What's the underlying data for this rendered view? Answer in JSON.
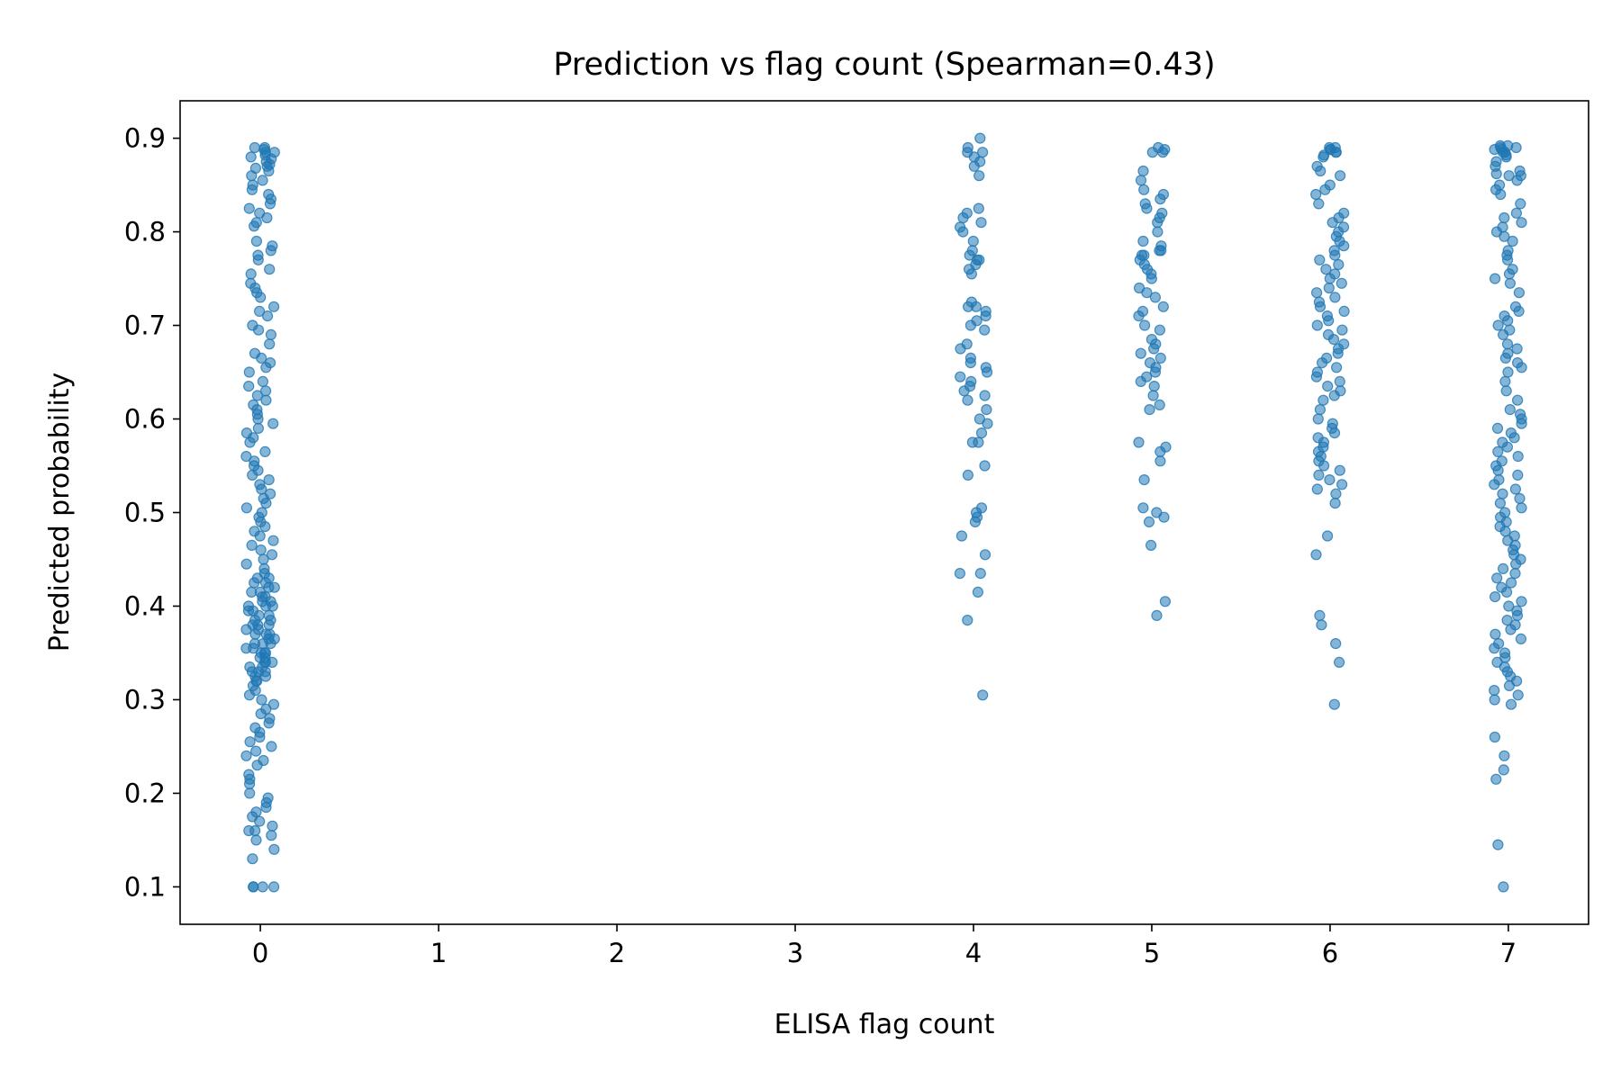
{
  "chart_data": {
    "type": "scatter",
    "title": "Prediction vs flag count (Spearman=0.43)",
    "xlabel": "ELISA flag count",
    "ylabel": "Predicted probability",
    "xlim": [
      -0.45,
      7.45
    ],
    "ylim": [
      0.06,
      0.94
    ],
    "x_ticks": [
      "0",
      "1",
      "2",
      "3",
      "4",
      "5",
      "6",
      "7"
    ],
    "y_ticks": [
      "0.1",
      "0.2",
      "0.3",
      "0.4",
      "0.5",
      "0.6",
      "0.7",
      "0.8",
      "0.9"
    ],
    "grid": false,
    "jitter": 0.08,
    "marker_color": "#1f77b4",
    "marker_alpha": 0.55,
    "series": [
      {
        "x": 0,
        "y": [
          0.89,
          0.89,
          0.888,
          0.885,
          0.885,
          0.882,
          0.88,
          0.878,
          0.875,
          0.872,
          0.87,
          0.868,
          0.865,
          0.86,
          0.855,
          0.85,
          0.845,
          0.84,
          0.835,
          0.83,
          0.825,
          0.82,
          0.815,
          0.81,
          0.806,
          0.79,
          0.785,
          0.78,
          0.775,
          0.77,
          0.76,
          0.755,
          0.745,
          0.74,
          0.735,
          0.73,
          0.72,
          0.715,
          0.71,
          0.7,
          0.695,
          0.69,
          0.68,
          0.67,
          0.665,
          0.66,
          0.655,
          0.65,
          0.64,
          0.635,
          0.63,
          0.625,
          0.62,
          0.615,
          0.61,
          0.605,
          0.6,
          0.595,
          0.59,
          0.585,
          0.58,
          0.575,
          0.565,
          0.56,
          0.555,
          0.55,
          0.545,
          0.54,
          0.535,
          0.53,
          0.525,
          0.52,
          0.515,
          0.51,
          0.505,
          0.5,
          0.495,
          0.49,
          0.485,
          0.48,
          0.475,
          0.47,
          0.465,
          0.46,
          0.455,
          0.45,
          0.445,
          0.44,
          0.435,
          0.43,
          0.43,
          0.425,
          0.425,
          0.42,
          0.42,
          0.415,
          0.415,
          0.41,
          0.41,
          0.405,
          0.405,
          0.4,
          0.4,
          0.4,
          0.395,
          0.395,
          0.39,
          0.39,
          0.385,
          0.385,
          0.38,
          0.38,
          0.38,
          0.375,
          0.375,
          0.37,
          0.37,
          0.37,
          0.365,
          0.365,
          0.36,
          0.36,
          0.36,
          0.355,
          0.355,
          0.35,
          0.35,
          0.35,
          0.345,
          0.345,
          0.34,
          0.34,
          0.34,
          0.335,
          0.335,
          0.33,
          0.33,
          0.33,
          0.325,
          0.325,
          0.32,
          0.32,
          0.315,
          0.31,
          0.305,
          0.3,
          0.295,
          0.29,
          0.285,
          0.28,
          0.275,
          0.27,
          0.265,
          0.26,
          0.255,
          0.25,
          0.245,
          0.24,
          0.235,
          0.23,
          0.22,
          0.215,
          0.21,
          0.2,
          0.195,
          0.19,
          0.185,
          0.18,
          0.175,
          0.17,
          0.165,
          0.16,
          0.16,
          0.155,
          0.15,
          0.14,
          0.13,
          0.1,
          0.1,
          0.1,
          0.1
        ]
      },
      {
        "x": 4,
        "y": [
          0.9,
          0.89,
          0.885,
          0.885,
          0.88,
          0.875,
          0.87,
          0.86,
          0.825,
          0.82,
          0.815,
          0.81,
          0.805,
          0.8,
          0.79,
          0.78,
          0.775,
          0.77,
          0.77,
          0.765,
          0.76,
          0.755,
          0.725,
          0.72,
          0.72,
          0.715,
          0.71,
          0.705,
          0.7,
          0.695,
          0.68,
          0.675,
          0.665,
          0.66,
          0.655,
          0.65,
          0.645,
          0.64,
          0.635,
          0.63,
          0.625,
          0.62,
          0.61,
          0.6,
          0.595,
          0.585,
          0.575,
          0.575,
          0.55,
          0.54,
          0.505,
          0.5,
          0.495,
          0.49,
          0.475,
          0.455,
          0.435,
          0.435,
          0.415,
          0.385,
          0.305
        ]
      },
      {
        "x": 5,
        "y": [
          0.89,
          0.888,
          0.885,
          0.885,
          0.865,
          0.855,
          0.845,
          0.84,
          0.835,
          0.83,
          0.825,
          0.82,
          0.815,
          0.81,
          0.8,
          0.79,
          0.785,
          0.78,
          0.78,
          0.775,
          0.775,
          0.77,
          0.765,
          0.76,
          0.755,
          0.75,
          0.74,
          0.735,
          0.73,
          0.72,
          0.715,
          0.71,
          0.7,
          0.695,
          0.685,
          0.68,
          0.675,
          0.67,
          0.665,
          0.66,
          0.655,
          0.65,
          0.645,
          0.64,
          0.635,
          0.625,
          0.615,
          0.61,
          0.575,
          0.57,
          0.565,
          0.555,
          0.535,
          0.505,
          0.5,
          0.495,
          0.49,
          0.465,
          0.405,
          0.39
        ]
      },
      {
        "x": 6,
        "y": [
          0.89,
          0.89,
          0.888,
          0.888,
          0.885,
          0.885,
          0.882,
          0.88,
          0.87,
          0.865,
          0.86,
          0.85,
          0.845,
          0.84,
          0.83,
          0.82,
          0.815,
          0.81,
          0.805,
          0.8,
          0.795,
          0.79,
          0.785,
          0.78,
          0.775,
          0.77,
          0.765,
          0.76,
          0.755,
          0.75,
          0.745,
          0.74,
          0.735,
          0.73,
          0.725,
          0.72,
          0.715,
          0.71,
          0.705,
          0.7,
          0.695,
          0.69,
          0.685,
          0.68,
          0.675,
          0.67,
          0.665,
          0.66,
          0.655,
          0.65,
          0.645,
          0.64,
          0.635,
          0.63,
          0.625,
          0.62,
          0.61,
          0.6,
          0.595,
          0.59,
          0.585,
          0.58,
          0.575,
          0.57,
          0.565,
          0.56,
          0.555,
          0.55,
          0.545,
          0.54,
          0.535,
          0.53,
          0.525,
          0.52,
          0.51,
          0.475,
          0.455,
          0.39,
          0.38,
          0.36,
          0.34,
          0.295
        ]
      },
      {
        "x": 7,
        "y": [
          0.892,
          0.892,
          0.89,
          0.89,
          0.888,
          0.888,
          0.885,
          0.885,
          0.882,
          0.88,
          0.875,
          0.87,
          0.865,
          0.862,
          0.86,
          0.86,
          0.855,
          0.85,
          0.845,
          0.84,
          0.83,
          0.82,
          0.815,
          0.81,
          0.805,
          0.8,
          0.795,
          0.79,
          0.78,
          0.775,
          0.77,
          0.76,
          0.755,
          0.75,
          0.745,
          0.735,
          0.72,
          0.715,
          0.71,
          0.705,
          0.7,
          0.695,
          0.69,
          0.68,
          0.675,
          0.67,
          0.665,
          0.66,
          0.655,
          0.65,
          0.64,
          0.63,
          0.62,
          0.61,
          0.605,
          0.6,
          0.595,
          0.59,
          0.585,
          0.58,
          0.575,
          0.57,
          0.565,
          0.56,
          0.555,
          0.55,
          0.545,
          0.54,
          0.535,
          0.53,
          0.525,
          0.52,
          0.515,
          0.51,
          0.505,
          0.5,
          0.495,
          0.49,
          0.485,
          0.48,
          0.475,
          0.47,
          0.465,
          0.46,
          0.455,
          0.45,
          0.445,
          0.44,
          0.435,
          0.43,
          0.425,
          0.42,
          0.415,
          0.41,
          0.405,
          0.4,
          0.395,
          0.39,
          0.385,
          0.38,
          0.375,
          0.37,
          0.365,
          0.36,
          0.355,
          0.35,
          0.345,
          0.34,
          0.335,
          0.33,
          0.325,
          0.32,
          0.315,
          0.31,
          0.305,
          0.3,
          0.295,
          0.26,
          0.24,
          0.225,
          0.215,
          0.145,
          0.1
        ]
      }
    ]
  }
}
